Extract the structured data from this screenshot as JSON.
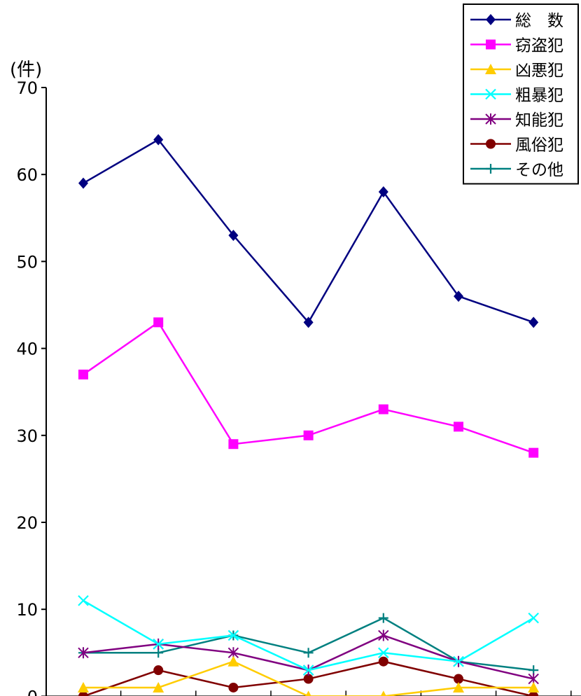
{
  "chart_data": {
    "type": "line",
    "unit_label": "(件)",
    "categories": [
      "",
      "",
      "",
      "",
      "",
      "",
      ""
    ],
    "ylim": [
      0,
      70
    ],
    "yticks": [
      "0",
      "10",
      "20",
      "30",
      "40",
      "50",
      "60",
      "70"
    ],
    "grid": false,
    "legend_position": "top-right",
    "series": [
      {
        "name": "総　数",
        "color": "#000080",
        "marker": "diamond",
        "values": [
          59,
          64,
          53,
          43,
          58,
          46,
          43
        ]
      },
      {
        "name": "窃盗犯",
        "color": "#ff00ff",
        "marker": "square",
        "values": [
          37,
          43,
          29,
          30,
          33,
          31,
          28
        ]
      },
      {
        "name": "凶悪犯",
        "color": "#ffcc00",
        "marker": "triangle",
        "values": [
          1,
          1,
          4,
          0,
          0,
          1,
          1
        ]
      },
      {
        "name": "粗暴犯",
        "color": "#00ffff",
        "marker": "x",
        "values": [
          11,
          6,
          7,
          3,
          5,
          4,
          9
        ]
      },
      {
        "name": "知能犯",
        "color": "#800080",
        "marker": "star",
        "values": [
          5,
          6,
          5,
          3,
          7,
          4,
          2
        ]
      },
      {
        "name": "風俗犯",
        "color": "#800000",
        "marker": "circle",
        "values": [
          0,
          3,
          1,
          2,
          4,
          2,
          0
        ]
      },
      {
        "name": "その他",
        "color": "#008080",
        "marker": "plus",
        "values": [
          5,
          5,
          7,
          5,
          9,
          4,
          3
        ]
      }
    ]
  }
}
